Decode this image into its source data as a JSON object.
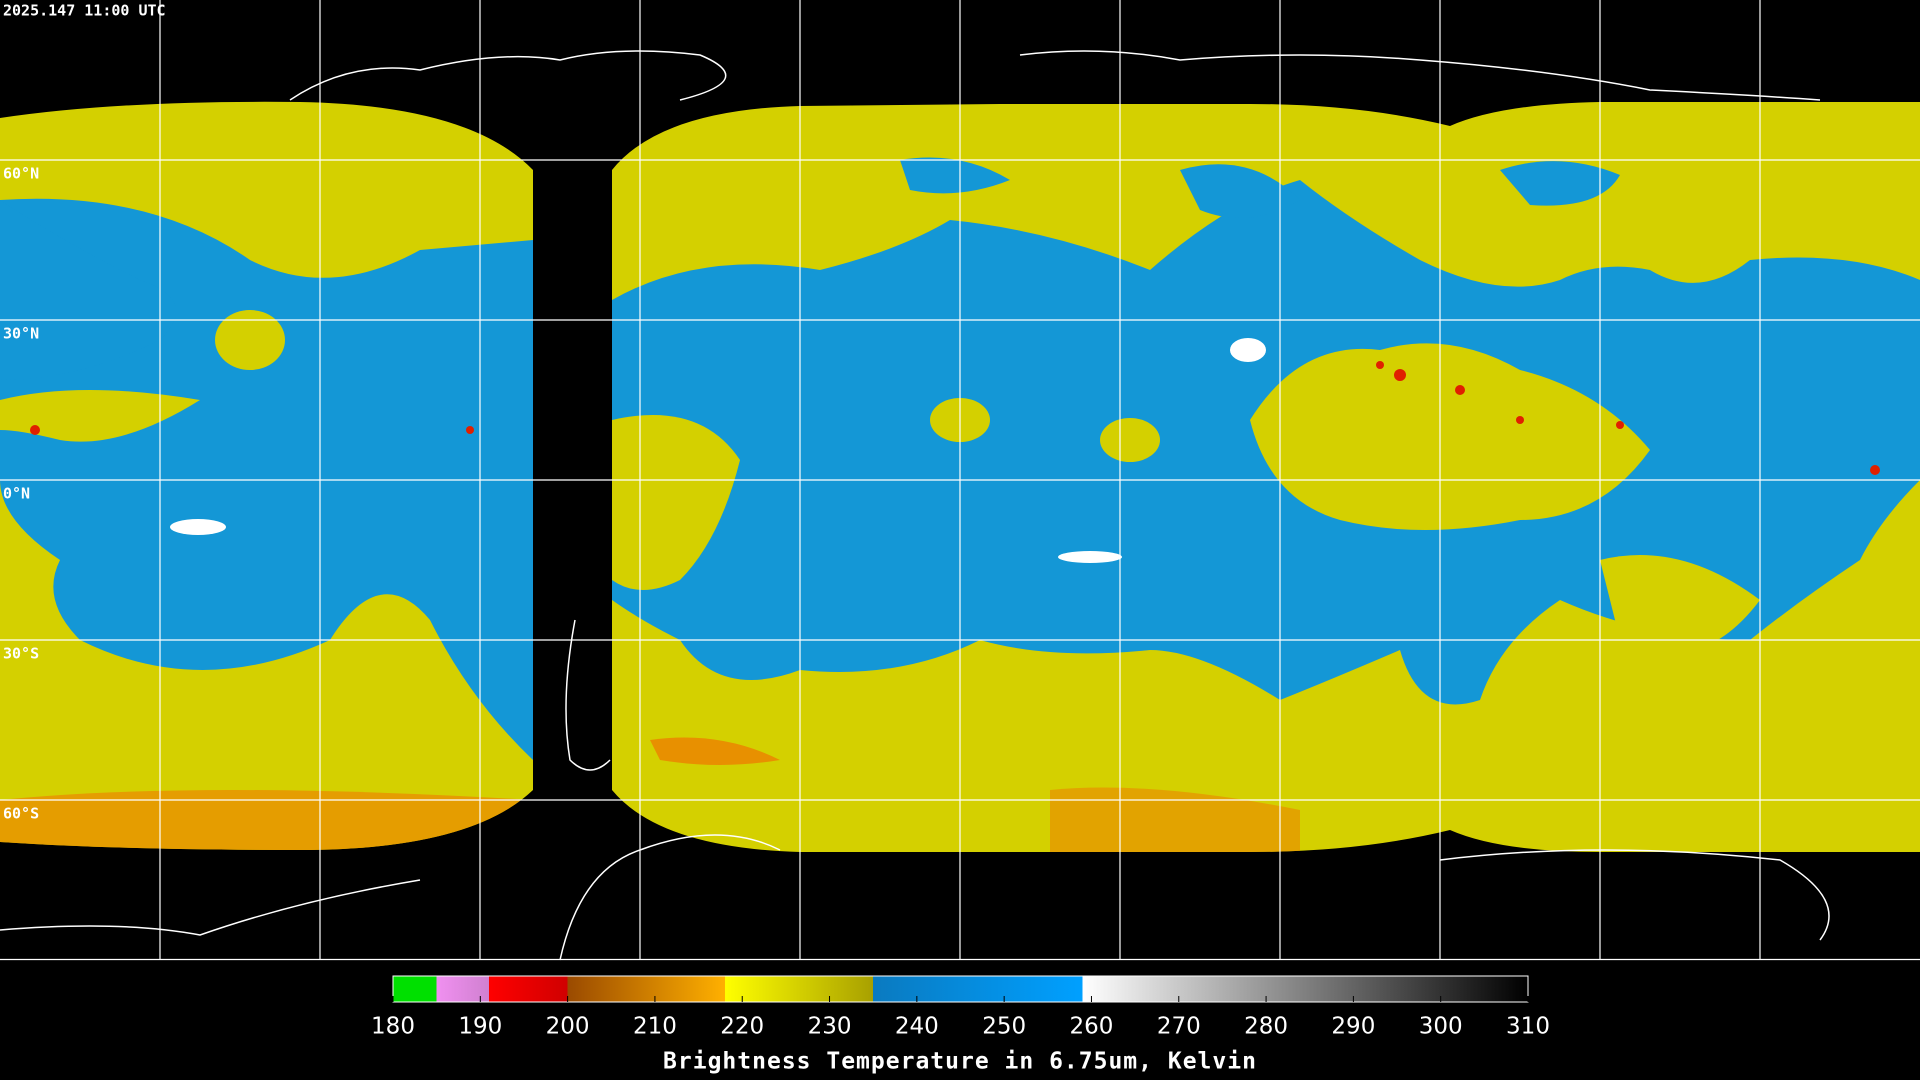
{
  "timestamp": "2025.147 11:00 UTC",
  "lat_labels": [
    "60°N",
    "30°N",
    "0°N",
    "30°S",
    "60°S"
  ],
  "colorbar": {
    "range": [
      180,
      310
    ],
    "ticks": [
      180,
      190,
      200,
      210,
      220,
      230,
      240,
      250,
      260,
      270,
      280,
      290,
      300,
      310
    ],
    "title": "Brightness Temperature in 6.75um, Kelvin"
  }
}
